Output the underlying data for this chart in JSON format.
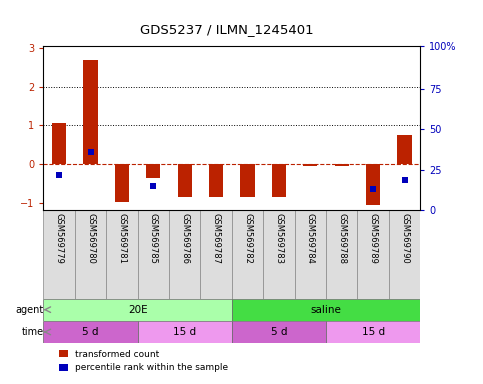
{
  "title": "GDS5237 / ILMN_1245401",
  "samples": [
    "GSM569779",
    "GSM569780",
    "GSM569781",
    "GSM569785",
    "GSM569786",
    "GSM569787",
    "GSM569782",
    "GSM569783",
    "GSM569784",
    "GSM569788",
    "GSM569789",
    "GSM569790"
  ],
  "red_values": [
    1.05,
    2.7,
    -0.98,
    -0.35,
    -0.85,
    -0.85,
    -0.85,
    -0.85,
    -0.05,
    -0.05,
    -1.05,
    0.75
  ],
  "blue_percentiles": [
    22,
    36,
    0,
    15,
    0,
    0,
    0,
    0,
    0,
    0,
    13,
    19
  ],
  "ylim": [
    -1.2,
    3.05
  ],
  "yticks_left": [
    -1,
    0,
    1,
    2,
    3
  ],
  "yticks_right_vals": [
    "0",
    "25",
    "50",
    "75",
    "100%"
  ],
  "yticks_right_pos": [
    -1.2,
    -0.15,
    0.9,
    1.95,
    3.05
  ],
  "hlines_dotted": [
    1.0,
    2.0
  ],
  "hline_dashed_red": 0.0,
  "agent_groups": [
    {
      "label": "20E",
      "start": 0,
      "end": 6,
      "color": "#AAFFAA"
    },
    {
      "label": "saline",
      "start": 6,
      "end": 12,
      "color": "#44DD44"
    }
  ],
  "time_colors_alt": [
    "#CC66CC",
    "#EE99EE",
    "#CC66CC",
    "#EE99EE"
  ],
  "time_groups": [
    {
      "label": "5 d",
      "start": 0,
      "end": 3
    },
    {
      "label": "15 d",
      "start": 3,
      "end": 6
    },
    {
      "label": "5 d",
      "start": 6,
      "end": 9
    },
    {
      "label": "15 d",
      "start": 9,
      "end": 12
    }
  ],
  "bar_width": 0.45,
  "red_color": "#BB2200",
  "blue_color": "#0000BB",
  "legend_red": "transformed count",
  "legend_blue": "percentile rank within the sample",
  "bg_sample": "#DDDDDD"
}
